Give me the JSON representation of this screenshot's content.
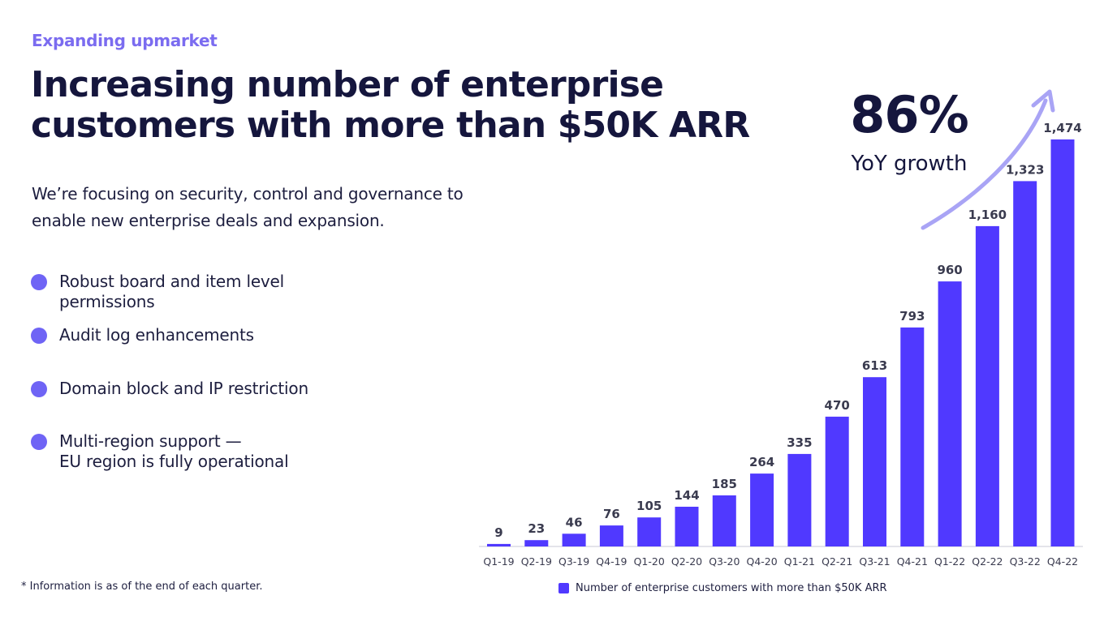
{
  "header": {
    "eyebrow": "Expanding upmarket",
    "title": "Increasing number of enterprise customers with more than $50K ARR",
    "subtitle": "We’re focusing on security, control and governance to enable new enterprise deals and expansion."
  },
  "bullets": [
    {
      "text": "Robust board and item level\npermissions"
    },
    {
      "text": "Audit log enhancements"
    },
    {
      "text": "Domain block and IP restriction"
    },
    {
      "text": "Multi-region support —\nEU region is fully operational"
    }
  ],
  "footnote": "* Information is as of the end of each quarter.",
  "highlight": {
    "value": "86%",
    "label": "YoY growth"
  },
  "colors": {
    "bar": "#5039ff",
    "accent": "#7b6cf0",
    "arrow": "#a9a4f5",
    "bullet": "#6f64f5"
  },
  "chart_data": {
    "type": "bar",
    "title": "Number of enterprise customers with more than $50K ARR",
    "categories": [
      "Q1-19",
      "Q2-19",
      "Q3-19",
      "Q4-19",
      "Q1-20",
      "Q2-20",
      "Q3-20",
      "Q4-20",
      "Q1-21",
      "Q2-21",
      "Q3-21",
      "Q4-21",
      "Q1-22",
      "Q2-22",
      "Q3-22",
      "Q4-22"
    ],
    "values": [
      9,
      23,
      46,
      76,
      105,
      144,
      185,
      264,
      335,
      470,
      613,
      793,
      960,
      1160,
      1323,
      1474
    ],
    "value_labels": [
      "9",
      "23",
      "46",
      "76",
      "105",
      "144",
      "185",
      "264",
      "335",
      "470",
      "613",
      "793",
      "960",
      "1,160",
      "1,323",
      "1,474"
    ],
    "legend": "Number of enterprise customers with more than $50K ARR",
    "xlabel": "",
    "ylabel": "",
    "ylim": [
      0,
      1474
    ],
    "grid": false
  }
}
